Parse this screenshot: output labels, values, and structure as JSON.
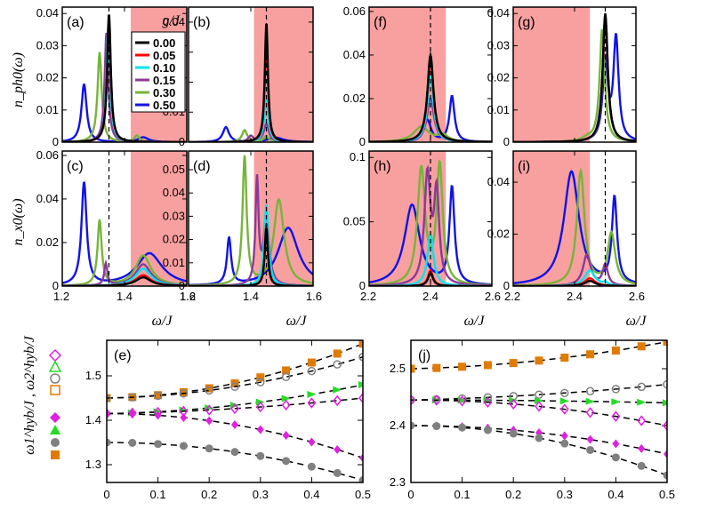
{
  "chart_data": {
    "type": "line",
    "x_label": "ω/J",
    "y_label_top": "n_ph0(ω)",
    "y_label_mid": "n_x0(ω)",
    "legend": {
      "title": "g/J",
      "entries": [
        {
          "label": "0.00",
          "g": 0.0,
          "color": "#000000"
        },
        {
          "label": "0.05",
          "g": 0.05,
          "color": "#ff0000"
        },
        {
          "label": "0.10",
          "g": 0.1,
          "color": "#00e5f0"
        },
        {
          "label": "0.15",
          "g": 0.15,
          "color": "#8b3a96"
        },
        {
          "label": "0.30",
          "g": 0.3,
          "color": "#77b43a"
        },
        {
          "label": "0.50",
          "g": 0.5,
          "color": "#1212e6"
        }
      ]
    },
    "panels": [
      {
        "id": "a",
        "label": "(a)",
        "quantity": "n_ph0",
        "xlim": [
          1.2,
          1.6
        ],
        "ylim": [
          0,
          0.042
        ],
        "xticks": [
          1.2,
          1.4,
          1.6
        ],
        "yticks": [
          "0",
          "0.01",
          "0.02",
          "0.03",
          "0.04"
        ],
        "vline": 1.35,
        "band": [
          1.42,
          1.6
        ],
        "peaks": [
          [
            [
              1.35,
              0.04,
              0.007
            ]
          ],
          [
            [
              1.35,
              0.038,
              0.007
            ]
          ],
          [
            [
              1.348,
              0.036,
              0.007
            ]
          ],
          [
            [
              1.342,
              0.034,
              0.007
            ]
          ],
          [
            [
              1.32,
              0.028,
              0.008
            ],
            [
              1.44,
              0.002,
              0.01
            ]
          ],
          [
            [
              1.27,
              0.018,
              0.01
            ],
            [
              1.46,
              0.0015,
              0.02
            ]
          ]
        ]
      },
      {
        "id": "b",
        "label": "(b)",
        "quantity": "n_ph0",
        "xlim": [
          1.2,
          1.6
        ],
        "ylim": [
          0,
          0.045
        ],
        "xticks": [
          1.2,
          1.4,
          1.6
        ],
        "yticks": [
          "0",
          "0.01",
          "0.02",
          "0.03",
          "0.04"
        ],
        "vline": 1.45,
        "band": [
          1.41,
          1.6
        ],
        "peaks": [
          [
            [
              1.45,
              0.04,
              0.006
            ]
          ],
          [
            [
              1.45,
              0.035,
              0.006
            ]
          ],
          [
            [
              1.45,
              0.014,
              0.008
            ]
          ],
          [
            [
              1.45,
              0.006,
              0.01
            ],
            [
              1.4,
              0.002,
              0.01
            ]
          ],
          [
            [
              1.38,
              0.004,
              0.01
            ],
            [
              1.45,
              0.002,
              0.01
            ]
          ],
          [
            [
              1.32,
              0.005,
              0.012
            ],
            [
              1.48,
              0.0015,
              0.03
            ]
          ]
        ]
      },
      {
        "id": "f",
        "label": "(f)",
        "quantity": "n_ph0",
        "xlim": [
          2.2,
          2.6
        ],
        "ylim": [
          0,
          0.062
        ],
        "xticks": [
          2.2,
          2.4,
          2.6
        ],
        "yticks": [
          "0",
          "0.02",
          "0.04",
          "0.06"
        ],
        "vline": 2.4,
        "band": [
          2.2,
          2.45
        ],
        "peaks": [
          [
            [
              2.4,
              0.04,
              0.012
            ]
          ],
          [
            [
              2.4,
              0.038,
              0.012
            ]
          ],
          [
            [
              2.4,
              0.03,
              0.012
            ]
          ],
          [
            [
              2.4,
              0.02,
              0.014
            ]
          ],
          [
            [
              2.37,
              0.007,
              0.03
            ],
            [
              2.44,
              0.003,
              0.02
            ]
          ],
          [
            [
              2.39,
              0.01,
              0.014
            ],
            [
              2.47,
              0.021,
              0.01
            ]
          ]
        ]
      },
      {
        "id": "g",
        "label": "(g)",
        "quantity": "n_ph0",
        "xlim": [
          2.2,
          2.6
        ],
        "ylim": [
          0,
          0.042
        ],
        "xticks": [
          2.2,
          2.4,
          2.6
        ],
        "yticks": [
          "0",
          "0.01",
          "0.02",
          "0.03",
          "0.04"
        ],
        "vline": 2.5,
        "band": [
          2.2,
          2.45
        ],
        "peaks": [
          [
            [
              2.5,
              0.04,
              0.01
            ]
          ],
          [
            [
              2.5,
              0.039,
              0.01
            ]
          ],
          [
            [
              2.5,
              0.038,
              0.01
            ]
          ],
          [
            [
              2.5,
              0.037,
              0.01
            ]
          ],
          [
            [
              2.49,
              0.035,
              0.01
            ],
            [
              2.44,
              0.001,
              0.02
            ]
          ],
          [
            [
              2.5,
              0.025,
              0.01
            ],
            [
              2.535,
              0.032,
              0.01
            ]
          ]
        ]
      },
      {
        "id": "c",
        "label": "(c)",
        "quantity": "n_x0",
        "xlim": [
          1.2,
          1.6
        ],
        "ylim": [
          0,
          0.062
        ],
        "xticks": [
          1.2,
          1.4,
          1.6
        ],
        "yticks": [
          "0",
          "0.02",
          "0.04",
          "0.06"
        ],
        "vline": 1.35,
        "band": [
          1.42,
          1.6
        ],
        "peaks": [
          [
            [
              1.46,
              0.004,
              0.03
            ]
          ],
          [
            [
              1.46,
              0.005,
              0.03
            ]
          ],
          [
            [
              1.46,
              0.008,
              0.03
            ]
          ],
          [
            [
              1.46,
              0.01,
              0.03
            ],
            [
              1.34,
              0.01,
              0.006
            ]
          ],
          [
            [
              1.32,
              0.03,
              0.008
            ],
            [
              1.46,
              0.014,
              0.03
            ]
          ],
          [
            [
              1.27,
              0.047,
              0.01
            ],
            [
              1.48,
              0.015,
              0.05
            ]
          ]
        ]
      },
      {
        "id": "d",
        "label": "(d)",
        "quantity": "n_x0",
        "xlim": [
          1.2,
          1.6
        ],
        "ylim": [
          0,
          0.058
        ],
        "xticks": [
          1.2,
          1.4,
          1.6
        ],
        "yticks": [
          "0",
          "0.01",
          "0.02",
          "0.03",
          "0.04",
          "0.05"
        ],
        "vline": 1.45,
        "band": [
          1.41,
          1.6
        ],
        "peaks": [
          [
            [
              1.45,
              0.025,
              0.006
            ]
          ],
          [
            [
              1.45,
              0.027,
              0.006
            ]
          ],
          [
            [
              1.45,
              0.035,
              0.008
            ]
          ],
          [
            [
              1.42,
              0.045,
              0.006
            ],
            [
              1.45,
              0.03,
              0.01
            ]
          ],
          [
            [
              1.38,
              0.055,
              0.008
            ],
            [
              1.49,
              0.037,
              0.02
            ]
          ],
          [
            [
              1.33,
              0.02,
              0.008
            ],
            [
              1.52,
              0.025,
              0.04
            ]
          ]
        ]
      },
      {
        "id": "h",
        "label": "(h)",
        "quantity": "n_x0",
        "xlim": [
          2.2,
          2.6
        ],
        "ylim": [
          0,
          0.105
        ],
        "xticks": [
          2.2,
          2.4,
          2.6
        ],
        "yticks": [
          "0",
          "0.05",
          "0.1"
        ],
        "vline": 2.4,
        "band": [
          2.2,
          2.45
        ],
        "peaks": [
          [
            [
              2.4,
              0.01,
              0.01
            ]
          ],
          [
            [
              2.4,
              0.012,
              0.01
            ]
          ],
          [
            [
              2.4,
              0.04,
              0.012
            ]
          ],
          [
            [
              2.39,
              0.085,
              0.012
            ],
            [
              2.42,
              0.07,
              0.01
            ]
          ],
          [
            [
              2.37,
              0.09,
              0.015
            ],
            [
              2.43,
              0.092,
              0.012
            ]
          ],
          [
            [
              2.34,
              0.063,
              0.03
            ],
            [
              2.47,
              0.075,
              0.01
            ]
          ]
        ]
      },
      {
        "id": "i",
        "label": "(i)",
        "quantity": "n_x0",
        "xlim": [
          2.2,
          2.6
        ],
        "ylim": [
          0,
          0.052
        ],
        "xticks": [
          2.2,
          2.4,
          2.6
        ],
        "yticks": [
          "0",
          "0.02",
          "0.04"
        ],
        "vline": 2.5,
        "band": [
          2.2,
          2.45
        ],
        "peaks": [
          [
            [
              2.45,
              0.002,
              0.02
            ]
          ],
          [
            [
              2.45,
              0.003,
              0.02
            ]
          ],
          [
            [
              2.45,
              0.006,
              0.02
            ],
            [
              2.5,
              0.001,
              0.01
            ]
          ],
          [
            [
              2.44,
              0.012,
              0.015
            ],
            [
              2.5,
              0.008,
              0.01
            ]
          ],
          [
            [
              2.42,
              0.044,
              0.015
            ],
            [
              2.52,
              0.02,
              0.015
            ]
          ],
          [
            [
              2.39,
              0.044,
              0.03
            ],
            [
              2.53,
              0.033,
              0.01
            ]
          ]
        ]
      },
      {
        "id": "e",
        "label": "(e)",
        "type": "scatter",
        "xlim": [
          0,
          0.5
        ],
        "ylim": [
          1.26,
          1.58
        ],
        "xticks": [
          "0",
          "0.1",
          "0.2",
          "0.3",
          "0.4",
          "0.5"
        ],
        "yticks": [
          "1.3",
          "1.4",
          "1.5"
        ],
        "fits": [
          {
            "y0": 1.45,
            "b": 0.45
          },
          {
            "y0": 1.45,
            "b": 0.33
          },
          {
            "y0": 1.415,
            "b": 0.22
          },
          {
            "y0": 1.415,
            "b": 0.1
          },
          {
            "y0": 1.415,
            "b": -0.4
          },
          {
            "y0": 1.35,
            "b": -0.34
          }
        ],
        "x_points": [
          0,
          0.05,
          0.1,
          0.15,
          0.2,
          0.25,
          0.3,
          0.35,
          0.4,
          0.45,
          0.5
        ]
      },
      {
        "id": "j",
        "label": "(j)",
        "type": "scatter",
        "xlim": [
          0,
          0.5
        ],
        "ylim": [
          2.3,
          2.55
        ],
        "xticks": [
          "0",
          "0.1",
          "0.2",
          "0.3",
          "0.4",
          "0.5"
        ],
        "yticks": [
          "2.3",
          "2.4",
          "2.5"
        ],
        "fits": [
          {
            "y0": 2.5,
            "b": 0.15
          },
          {
            "y0": 2.445,
            "b": 0.07
          },
          {
            "y0": 2.445,
            "b": -0.02
          },
          {
            "y0": 2.445,
            "b": -0.18
          },
          {
            "y0": 2.4,
            "b": -0.2
          },
          {
            "y0": 2.4,
            "b": -0.35
          }
        ],
        "x_points": [
          0,
          0.05,
          0.1,
          0.15,
          0.2,
          0.25,
          0.3,
          0.35,
          0.4,
          0.45,
          0.5
        ]
      }
    ],
    "scatter_y_label": "ω1^hyb/J , ω2^hyb/J",
    "markers": {
      "omega2": [
        {
          "shape": "diamond-open",
          "color": "#e020e0"
        },
        {
          "shape": "triangle-open",
          "color": "#22dd22"
        },
        {
          "shape": "circle-open",
          "color": "#808080"
        },
        {
          "shape": "square-open",
          "color": "#e07b00"
        }
      ],
      "omega1": [
        {
          "shape": "diamond",
          "color": "#e020e0"
        },
        {
          "shape": "triangle",
          "color": "#22dd22"
        },
        {
          "shape": "circle",
          "color": "#808080"
        },
        {
          "shape": "square",
          "color": "#e07b00"
        }
      ]
    }
  }
}
